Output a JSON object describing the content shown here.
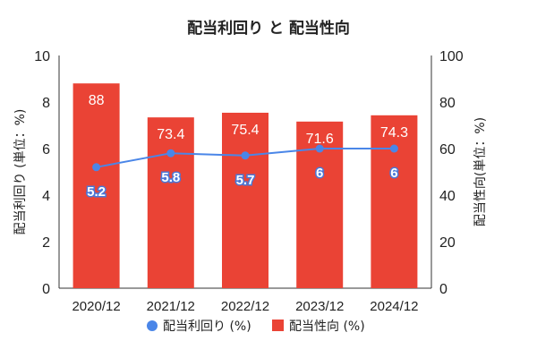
{
  "chart_data": {
    "type": "bar",
    "title": "配当利回り と 配当性向",
    "categories": [
      "2020/12",
      "2021/12",
      "2022/12",
      "2023/12",
      "2024/12"
    ],
    "ylabel_left": "配当利回り (単位：%)",
    "ylabel_right": "配当性向(単位：%)",
    "ylim_left": [
      0,
      10
    ],
    "ylim_right": [
      0,
      100
    ],
    "yticks_left": [
      "0",
      "2",
      "4",
      "6",
      "8",
      "10"
    ],
    "yticks_right": [
      "0",
      "20",
      "40",
      "60",
      "80",
      "100"
    ],
    "legend_position": "bottom",
    "series": [
      {
        "name": "配当利回り (%)",
        "type": "line",
        "axis": "left",
        "color": "#4a86e8",
        "values": [
          5.2,
          5.8,
          5.7,
          6,
          6
        ],
        "labels": [
          "5.2",
          "5.8",
          "5.7",
          "6",
          "6"
        ]
      },
      {
        "name": "配当性向 (%)",
        "type": "bar",
        "axis": "right",
        "color": "#ea4335",
        "values": [
          88,
          73.4,
          75.4,
          71.6,
          74.3
        ],
        "labels": [
          "88",
          "73.4",
          "75.4",
          "71.6",
          "74.3"
        ]
      }
    ]
  }
}
